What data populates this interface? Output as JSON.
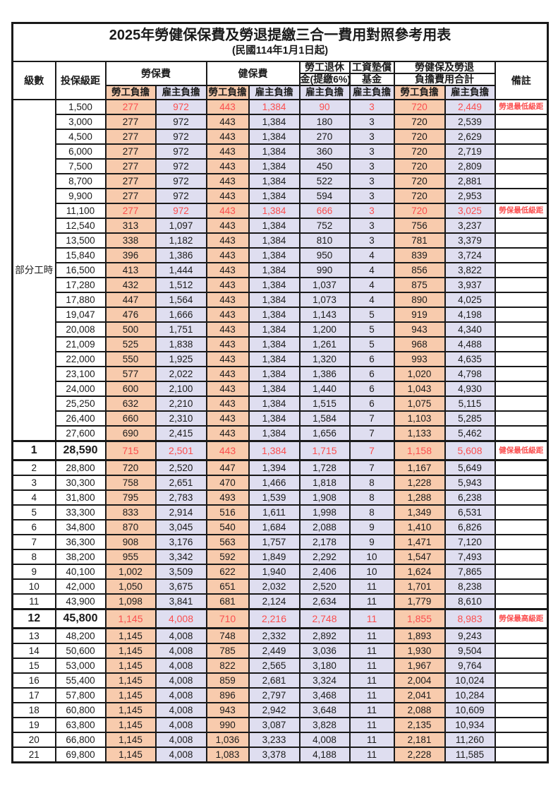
{
  "title": "2025年勞健保保費及勞退提繳三合一費用對照參考用表",
  "subtitle": "(民國114年1月1日起)",
  "colors": {
    "employee_bg": "#F8CBAD",
    "employer_bg": "#DFDEF0",
    "highlight_red": "#FB4E4E",
    "grid": "#191919"
  },
  "header": {
    "level": "級數",
    "salary": "投保級距",
    "labor_fee": "勞保費",
    "health_fee": "健保費",
    "pension_line1": "勞工退休",
    "pension_line2": "金(提繳6%)",
    "arrears_line1": "工資墊償",
    "arrears_line2": "基金",
    "total_line1": "勞健保及勞退",
    "total_line2": "負擔費用合計",
    "note": "備註",
    "employee": "勞工負擔",
    "employer": "雇主負擔"
  },
  "part_time_label": "部分工時",
  "part_time_span": 23,
  "rows": [
    {
      "level": "",
      "salary": "1,500",
      "v": [
        "277",
        "972",
        "443",
        "1,384",
        "90",
        "3",
        "720",
        "2,449"
      ],
      "note": "勞退最低級距",
      "red": true,
      "em": false
    },
    {
      "level": "",
      "salary": "3,000",
      "v": [
        "277",
        "972",
        "443",
        "1,384",
        "180",
        "3",
        "720",
        "2,539"
      ],
      "note": "",
      "red": false,
      "em": false
    },
    {
      "level": "",
      "salary": "4,500",
      "v": [
        "277",
        "972",
        "443",
        "1,384",
        "270",
        "3",
        "720",
        "2,629"
      ],
      "note": "",
      "red": false,
      "em": false
    },
    {
      "level": "",
      "salary": "6,000",
      "v": [
        "277",
        "972",
        "443",
        "1,384",
        "360",
        "3",
        "720",
        "2,719"
      ],
      "note": "",
      "red": false,
      "em": false
    },
    {
      "level": "",
      "salary": "7,500",
      "v": [
        "277",
        "972",
        "443",
        "1,384",
        "450",
        "3",
        "720",
        "2,809"
      ],
      "note": "",
      "red": false,
      "em": false
    },
    {
      "level": "",
      "salary": "8,700",
      "v": [
        "277",
        "972",
        "443",
        "1,384",
        "522",
        "3",
        "720",
        "2,881"
      ],
      "note": "",
      "red": false,
      "em": false
    },
    {
      "level": "",
      "salary": "9,900",
      "v": [
        "277",
        "972",
        "443",
        "1,384",
        "594",
        "3",
        "720",
        "2,953"
      ],
      "note": "",
      "red": false,
      "em": false
    },
    {
      "level": "",
      "salary": "11,100",
      "v": [
        "277",
        "972",
        "443",
        "1,384",
        "666",
        "3",
        "720",
        "3,025"
      ],
      "note": "勞保最低級距",
      "red": true,
      "em": false
    },
    {
      "level": "",
      "salary": "12,540",
      "v": [
        "313",
        "1,097",
        "443",
        "1,384",
        "752",
        "3",
        "756",
        "3,237"
      ],
      "note": "",
      "red": false,
      "em": false
    },
    {
      "level": "",
      "salary": "13,500",
      "v": [
        "338",
        "1,182",
        "443",
        "1,384",
        "810",
        "3",
        "781",
        "3,379"
      ],
      "note": "",
      "red": false,
      "em": false
    },
    {
      "level": "",
      "salary": "15,840",
      "v": [
        "396",
        "1,386",
        "443",
        "1,384",
        "950",
        "4",
        "839",
        "3,724"
      ],
      "note": "",
      "red": false,
      "em": false
    },
    {
      "level": "",
      "salary": "16,500",
      "v": [
        "413",
        "1,444",
        "443",
        "1,384",
        "990",
        "4",
        "856",
        "3,822"
      ],
      "note": "",
      "red": false,
      "em": false
    },
    {
      "level": "",
      "salary": "17,280",
      "v": [
        "432",
        "1,512",
        "443",
        "1,384",
        "1,037",
        "4",
        "875",
        "3,937"
      ],
      "note": "",
      "red": false,
      "em": false
    },
    {
      "level": "",
      "salary": "17,880",
      "v": [
        "447",
        "1,564",
        "443",
        "1,384",
        "1,073",
        "4",
        "890",
        "4,025"
      ],
      "note": "",
      "red": false,
      "em": false
    },
    {
      "level": "",
      "salary": "19,047",
      "v": [
        "476",
        "1,666",
        "443",
        "1,384",
        "1,143",
        "5",
        "919",
        "4,198"
      ],
      "note": "",
      "red": false,
      "em": false
    },
    {
      "level": "",
      "salary": "20,008",
      "v": [
        "500",
        "1,751",
        "443",
        "1,384",
        "1,200",
        "5",
        "943",
        "4,340"
      ],
      "note": "",
      "red": false,
      "em": false
    },
    {
      "level": "",
      "salary": "21,009",
      "v": [
        "525",
        "1,838",
        "443",
        "1,384",
        "1,261",
        "5",
        "968",
        "4,488"
      ],
      "note": "",
      "red": false,
      "em": false
    },
    {
      "level": "",
      "salary": "22,000",
      "v": [
        "550",
        "1,925",
        "443",
        "1,384",
        "1,320",
        "6",
        "993",
        "4,635"
      ],
      "note": "",
      "red": false,
      "em": false
    },
    {
      "level": "",
      "salary": "23,100",
      "v": [
        "577",
        "2,022",
        "443",
        "1,384",
        "1,386",
        "6",
        "1,020",
        "4,798"
      ],
      "note": "",
      "red": false,
      "em": false
    },
    {
      "level": "",
      "salary": "24,000",
      "v": [
        "600",
        "2,100",
        "443",
        "1,384",
        "1,440",
        "6",
        "1,043",
        "4,930"
      ],
      "note": "",
      "red": false,
      "em": false
    },
    {
      "level": "",
      "salary": "25,250",
      "v": [
        "632",
        "2,210",
        "443",
        "1,384",
        "1,515",
        "6",
        "1,075",
        "5,115"
      ],
      "note": "",
      "red": false,
      "em": false
    },
    {
      "level": "",
      "salary": "26,400",
      "v": [
        "660",
        "2,310",
        "443",
        "1,384",
        "1,584",
        "7",
        "1,103",
        "5,285"
      ],
      "note": "",
      "red": false,
      "em": false
    },
    {
      "level": "",
      "salary": "27,600",
      "v": [
        "690",
        "2,415",
        "443",
        "1,384",
        "1,656",
        "7",
        "1,133",
        "5,462"
      ],
      "note": "",
      "red": false,
      "em": false
    },
    {
      "level": "1",
      "salary": "28,590",
      "v": [
        "715",
        "2,501",
        "443",
        "1,384",
        "1,715",
        "7",
        "1,158",
        "5,608"
      ],
      "note": "健保最低級距",
      "red": true,
      "em": true
    },
    {
      "level": "2",
      "salary": "28,800",
      "v": [
        "720",
        "2,520",
        "447",
        "1,394",
        "1,728",
        "7",
        "1,167",
        "5,649"
      ],
      "note": "",
      "red": false,
      "em": false
    },
    {
      "level": "3",
      "salary": "30,300",
      "v": [
        "758",
        "2,651",
        "470",
        "1,466",
        "1,818",
        "8",
        "1,228",
        "5,943"
      ],
      "note": "",
      "red": false,
      "em": false
    },
    {
      "level": "4",
      "salary": "31,800",
      "v": [
        "795",
        "2,783",
        "493",
        "1,539",
        "1,908",
        "8",
        "1,288",
        "6,238"
      ],
      "note": "",
      "red": false,
      "em": false
    },
    {
      "level": "5",
      "salary": "33,300",
      "v": [
        "833",
        "2,914",
        "516",
        "1,611",
        "1,998",
        "8",
        "1,349",
        "6,531"
      ],
      "note": "",
      "red": false,
      "em": false
    },
    {
      "level": "6",
      "salary": "34,800",
      "v": [
        "870",
        "3,045",
        "540",
        "1,684",
        "2,088",
        "9",
        "1,410",
        "6,826"
      ],
      "note": "",
      "red": false,
      "em": false
    },
    {
      "level": "7",
      "salary": "36,300",
      "v": [
        "908",
        "3,176",
        "563",
        "1,757",
        "2,178",
        "9",
        "1,471",
        "7,120"
      ],
      "note": "",
      "red": false,
      "em": false
    },
    {
      "level": "8",
      "salary": "38,200",
      "v": [
        "955",
        "3,342",
        "592",
        "1,849",
        "2,292",
        "10",
        "1,547",
        "7,493"
      ],
      "note": "",
      "red": false,
      "em": false
    },
    {
      "level": "9",
      "salary": "40,100",
      "v": [
        "1,002",
        "3,509",
        "622",
        "1,940",
        "2,406",
        "10",
        "1,624",
        "7,865"
      ],
      "note": "",
      "red": false,
      "em": false
    },
    {
      "level": "10",
      "salary": "42,000",
      "v": [
        "1,050",
        "3,675",
        "651",
        "2,032",
        "2,520",
        "11",
        "1,701",
        "8,238"
      ],
      "note": "",
      "red": false,
      "em": false
    },
    {
      "level": "11",
      "salary": "43,900",
      "v": [
        "1,098",
        "3,841",
        "681",
        "2,124",
        "2,634",
        "11",
        "1,779",
        "8,610"
      ],
      "note": "",
      "red": false,
      "em": false
    },
    {
      "level": "12",
      "salary": "45,800",
      "v": [
        "1,145",
        "4,008",
        "710",
        "2,216",
        "2,748",
        "11",
        "1,855",
        "8,983"
      ],
      "note": "勞保最高級距",
      "red": true,
      "em": true
    },
    {
      "level": "13",
      "salary": "48,200",
      "v": [
        "1,145",
        "4,008",
        "748",
        "2,332",
        "2,892",
        "11",
        "1,893",
        "9,243"
      ],
      "note": "",
      "red": false,
      "em": false
    },
    {
      "level": "14",
      "salary": "50,600",
      "v": [
        "1,145",
        "4,008",
        "785",
        "2,449",
        "3,036",
        "11",
        "1,930",
        "9,504"
      ],
      "note": "",
      "red": false,
      "em": false
    },
    {
      "level": "15",
      "salary": "53,000",
      "v": [
        "1,145",
        "4,008",
        "822",
        "2,565",
        "3,180",
        "11",
        "1,967",
        "9,764"
      ],
      "note": "",
      "red": false,
      "em": false
    },
    {
      "level": "16",
      "salary": "55,400",
      "v": [
        "1,145",
        "4,008",
        "859",
        "2,681",
        "3,324",
        "11",
        "2,004",
        "10,024"
      ],
      "note": "",
      "red": false,
      "em": false
    },
    {
      "level": "17",
      "salary": "57,800",
      "v": [
        "1,145",
        "4,008",
        "896",
        "2,797",
        "3,468",
        "11",
        "2,041",
        "10,284"
      ],
      "note": "",
      "red": false,
      "em": false
    },
    {
      "level": "18",
      "salary": "60,800",
      "v": [
        "1,145",
        "4,008",
        "943",
        "2,942",
        "3,648",
        "11",
        "2,088",
        "10,609"
      ],
      "note": "",
      "red": false,
      "em": false
    },
    {
      "level": "19",
      "salary": "63,800",
      "v": [
        "1,145",
        "4,008",
        "990",
        "3,087",
        "3,828",
        "11",
        "2,135",
        "10,934"
      ],
      "note": "",
      "red": false,
      "em": false
    },
    {
      "level": "20",
      "salary": "66,800",
      "v": [
        "1,145",
        "4,008",
        "1,036",
        "3,233",
        "4,008",
        "11",
        "2,181",
        "11,260"
      ],
      "note": "",
      "red": false,
      "em": false
    },
    {
      "level": "21",
      "salary": "69,800",
      "v": [
        "1,145",
        "4,008",
        "1,083",
        "3,378",
        "4,188",
        "11",
        "2,228",
        "11,585"
      ],
      "note": "",
      "red": false,
      "em": false
    }
  ]
}
